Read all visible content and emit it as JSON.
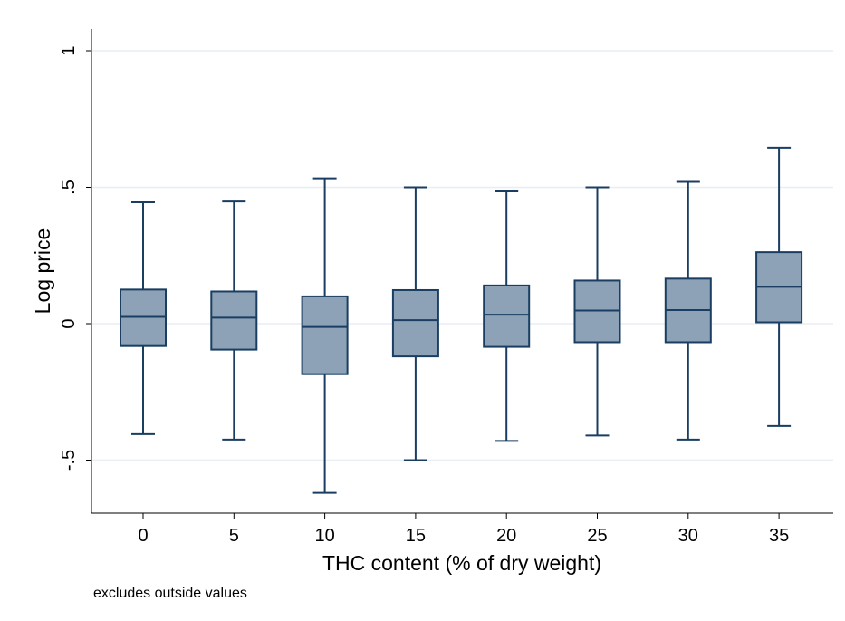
{
  "chart_data": {
    "type": "box",
    "title": "",
    "xlabel": "THC content (% of dry weight)",
    "ylabel": "Log price",
    "note": "excludes outside values",
    "ylim": [
      -0.7,
      1.08
    ],
    "yticks": [
      {
        "value": -0.5,
        "label": "-.5"
      },
      {
        "value": 0,
        "label": "0"
      },
      {
        "value": 0.5,
        "label": ".5"
      },
      {
        "value": 1,
        "label": "1"
      }
    ],
    "grid": true,
    "legend": "none",
    "categories": [
      "0",
      "5",
      "10",
      "15",
      "20",
      "25",
      "30",
      "35"
    ],
    "boxes": [
      {
        "category": "0",
        "whisker_low": -0.405,
        "q1": -0.082,
        "median": 0.025,
        "q3": 0.125,
        "whisker_high": 0.445
      },
      {
        "category": "5",
        "whisker_low": -0.425,
        "q1": -0.095,
        "median": 0.022,
        "q3": 0.118,
        "whisker_high": 0.448
      },
      {
        "category": "10",
        "whisker_low": -0.62,
        "q1": -0.185,
        "median": -0.012,
        "q3": 0.1,
        "whisker_high": 0.533
      },
      {
        "category": "15",
        "whisker_low": -0.5,
        "q1": -0.12,
        "median": 0.013,
        "q3": 0.123,
        "whisker_high": 0.5
      },
      {
        "category": "20",
        "whisker_low": -0.43,
        "q1": -0.085,
        "median": 0.033,
        "q3": 0.14,
        "whisker_high": 0.485
      },
      {
        "category": "25",
        "whisker_low": -0.41,
        "q1": -0.068,
        "median": 0.048,
        "q3": 0.158,
        "whisker_high": 0.5
      },
      {
        "category": "30",
        "whisker_low": -0.425,
        "q1": -0.068,
        "median": 0.05,
        "q3": 0.165,
        "whisker_high": 0.52
      },
      {
        "category": "35",
        "whisker_low": -0.375,
        "q1": 0.005,
        "median": 0.135,
        "q3": 0.262,
        "whisker_high": 0.645
      }
    ],
    "colors": {
      "box_fill": "#8da2b7",
      "box_stroke": "#1a3e62",
      "grid": "#e8eef3",
      "axis": "#000000"
    }
  }
}
